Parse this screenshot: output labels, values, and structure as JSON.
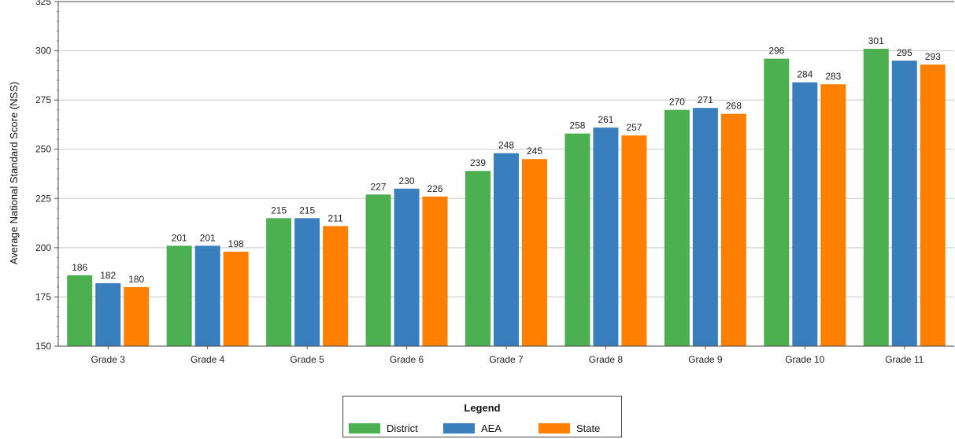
{
  "chart_data": {
    "type": "bar",
    "ylabel": "Average National Standard Score (NSS)",
    "xlabel": "",
    "ylim": [
      150,
      325
    ],
    "yticks": [
      150,
      175,
      200,
      225,
      250,
      275,
      300,
      325
    ],
    "grid": true,
    "categories": [
      "Grade 3",
      "Grade 4",
      "Grade 5",
      "Grade 6",
      "Grade 7",
      "Grade 8",
      "Grade 9",
      "Grade 10",
      "Grade 11"
    ],
    "series": [
      {
        "name": "District",
        "color": "#4caf50",
        "values": [
          186,
          201,
          215,
          227,
          239,
          258,
          270,
          296,
          301
        ]
      },
      {
        "name": "AEA",
        "color": "#3a7fbd",
        "values": [
          182,
          201,
          215,
          230,
          248,
          261,
          271,
          284,
          295
        ]
      },
      {
        "name": "State",
        "color": "#ff8000",
        "values": [
          180,
          198,
          211,
          226,
          245,
          257,
          268,
          283,
          293
        ]
      }
    ]
  },
  "legend": {
    "title": "Legend",
    "placement": "bottom-center",
    "items": [
      "District",
      "AEA",
      "State"
    ]
  }
}
